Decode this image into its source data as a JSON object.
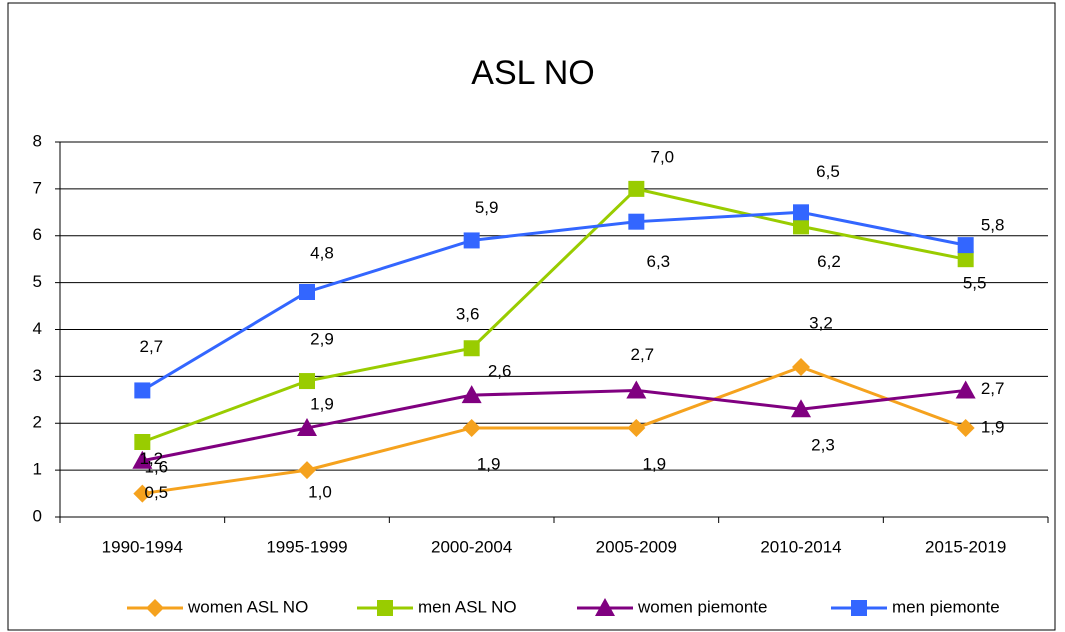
{
  "chart_data": {
    "type": "line",
    "title": "ASL NO",
    "categories": [
      "1990-1994",
      "1995-1999",
      "2000-2004",
      "2005-2009",
      "2010-2014",
      "2015-2019"
    ],
    "series": [
      {
        "name": "women ASL NO",
        "color": "#F5A21E",
        "marker": "diamond",
        "values": [
          0.5,
          1.0,
          1.9,
          1.9,
          3.2,
          1.9
        ],
        "value_labels": [
          "0,5",
          "1,0",
          "1,9",
          "1,9",
          "3,2",
          "1,9"
        ]
      },
      {
        "name": "men ASL NO",
        "color": "#99CC00",
        "marker": "square",
        "values": [
          1.6,
          2.9,
          3.6,
          7.0,
          6.2,
          5.5
        ],
        "value_labels": [
          "1,6",
          "2,9",
          "3,6",
          "7,0",
          "6,2",
          "5,5"
        ]
      },
      {
        "name": "women piemonte",
        "color": "#800080",
        "marker": "triangle",
        "values": [
          1.2,
          1.9,
          2.6,
          2.7,
          2.3,
          2.7
        ],
        "value_labels": [
          "1,2",
          "1,9",
          "2,6",
          "2,7",
          "2,3",
          "2,7"
        ]
      },
      {
        "name": "men piemonte",
        "color": "#3366FF",
        "marker": "square",
        "values": [
          2.7,
          4.8,
          5.9,
          6.3,
          6.5,
          5.8
        ],
        "value_labels": [
          "2,7",
          "4,8",
          "5,9",
          "6,3",
          "6,5",
          "5,8"
        ]
      }
    ],
    "ylim": [
      0,
      8
    ],
    "yticks": [
      0,
      1,
      2,
      3,
      4,
      5,
      6,
      7,
      8
    ],
    "grid": true,
    "legend": "bottom"
  }
}
